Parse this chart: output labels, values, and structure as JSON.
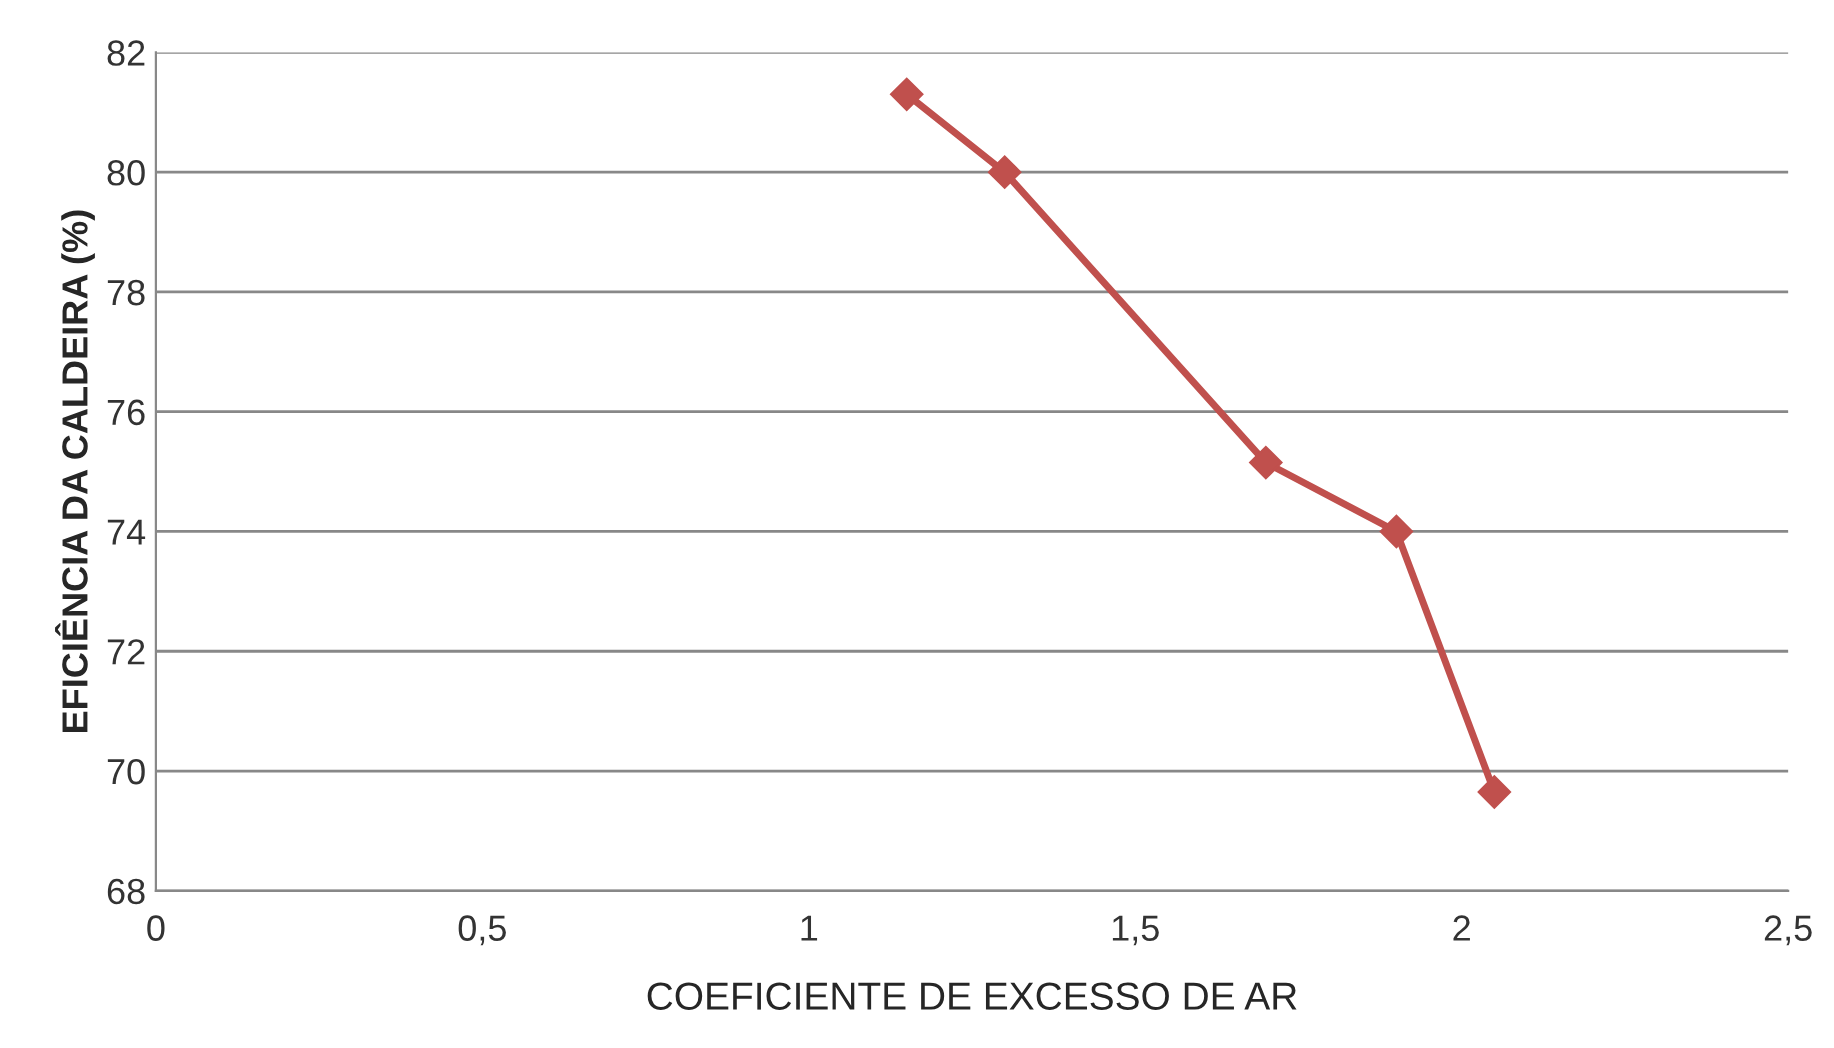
{
  "chart_data": {
    "type": "line",
    "xlabel": "COEFICIENTE DE EXCESSO DE AR",
    "ylabel": "EFICIÊNCIA DA CALDEIRA (%)",
    "x": [
      1.15,
      1.3,
      1.7,
      1.9,
      2.05
    ],
    "series": [
      {
        "color": "#c0504d",
        "values": [
          81.3,
          80.0,
          75.15,
          74.0,
          69.65
        ]
      }
    ],
    "xlim": [
      0,
      2.5
    ],
    "xticks": [
      0,
      {
        "value": 0.5,
        "label": "0,5"
      },
      1,
      {
        "value": 1.5,
        "label": "1,5"
      },
      2,
      {
        "value": 2.5,
        "label": "2,5"
      }
    ],
    "ylim": [
      68,
      82
    ],
    "yticks": [
      68,
      70,
      72,
      74,
      76,
      78,
      80,
      82
    ],
    "grid": "y",
    "marker": "diamond",
    "line_style": "solid"
  }
}
